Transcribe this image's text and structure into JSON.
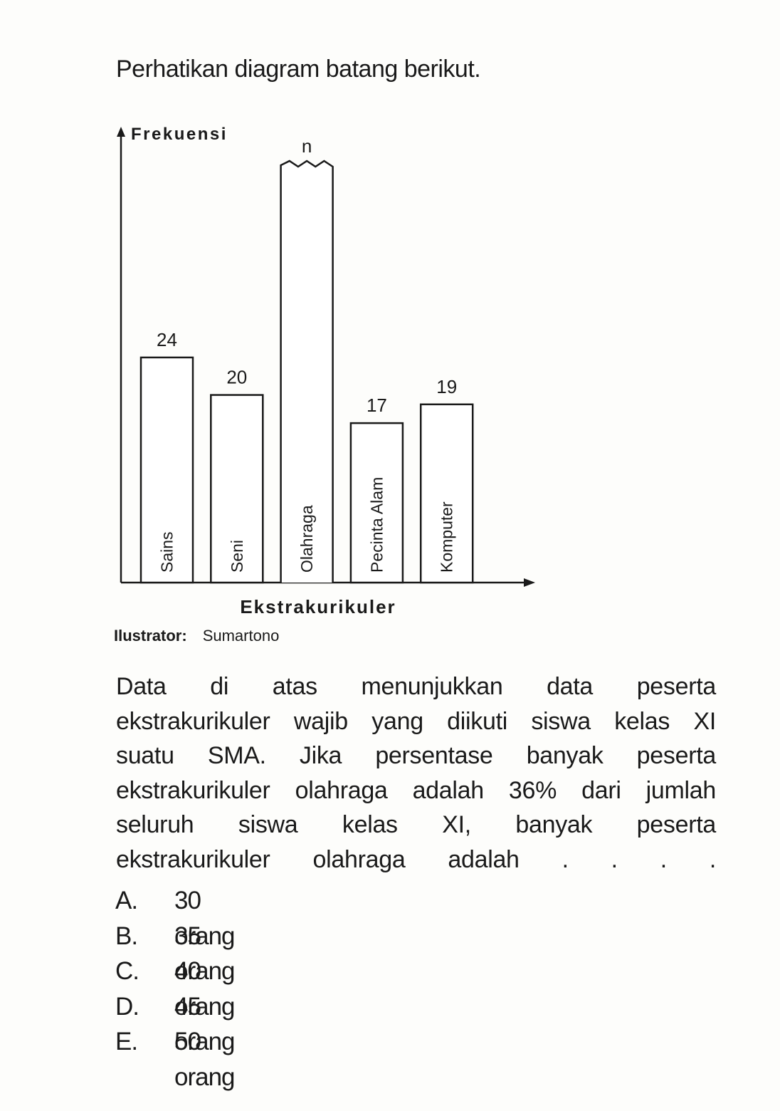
{
  "intro": "Perhatikan diagram batang berikut.",
  "chart_data": {
    "type": "bar",
    "ylabel": "Frekuensi",
    "xlabel": "Ekstrakurikuler",
    "categories": [
      "Sains",
      "Seni",
      "Olahraga",
      "Pecinta Alam",
      "Komputer"
    ],
    "values": [
      24,
      20,
      null,
      17,
      19
    ],
    "value_labels": [
      "24",
      "20",
      "n",
      "17",
      "19"
    ],
    "color": "#ffffff"
  },
  "credit": {
    "label": "Ilustrator:",
    "name": "Sumartono"
  },
  "question_lines": [
    "Data di atas menunjukkan data peserta",
    "ekstrakurikuler wajib yang diikuti siswa kelas XI",
    "suatu SMA. Jika persentase banyak peserta",
    "ekstrakurikuler olahraga adalah 36% dari jumlah",
    "seluruh siswa kelas XI, banyak peserta",
    "ekstrakurikuler olahraga adalah . . . ."
  ],
  "options": [
    {
      "letter": "A.",
      "text": "30 orang"
    },
    {
      "letter": "B.",
      "text": "35 orang"
    },
    {
      "letter": "C.",
      "text": "40 orang"
    },
    {
      "letter": "D.",
      "text": "45 orang"
    },
    {
      "letter": "E.",
      "text": "50 orang"
    }
  ]
}
